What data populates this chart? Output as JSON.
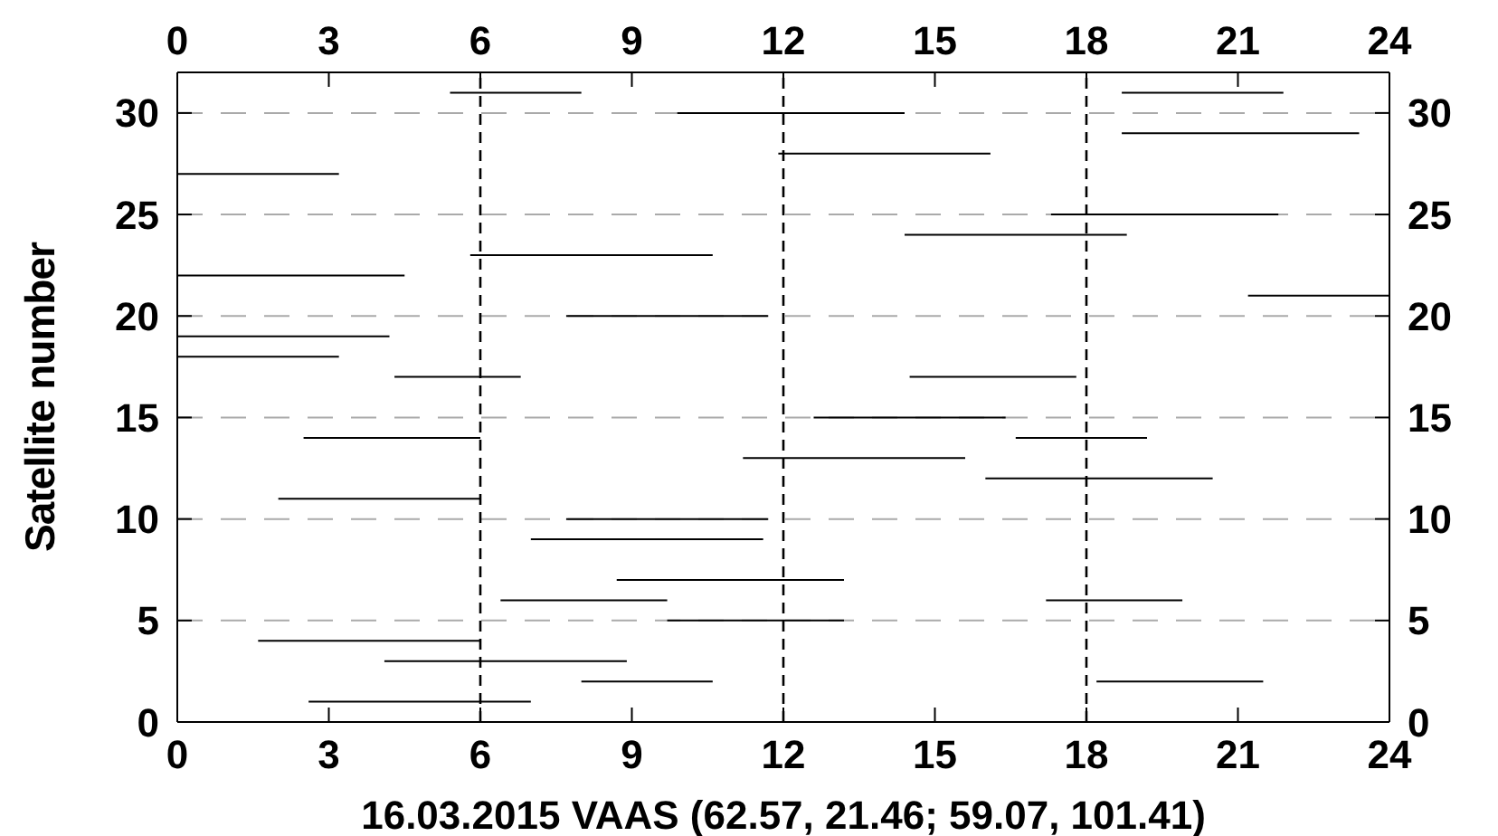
{
  "chart_data": {
    "type": "line",
    "xlabel": "16.03.2015 VAAS (62.57, 21.46; 59.07, 101.41)",
    "ylabel": "Satellite number",
    "xlim": [
      0,
      24
    ],
    "xticks": [
      0,
      3,
      6,
      9,
      12,
      15,
      18,
      21,
      24
    ],
    "x2lim": [
      0,
      24
    ],
    "x2ticks": [
      0,
      3,
      6,
      9,
      12,
      15,
      18,
      21,
      24
    ],
    "ylim": [
      0,
      32
    ],
    "yticks": [
      0,
      5,
      10,
      15,
      20,
      25,
      30
    ],
    "y2lim": [
      0,
      32
    ],
    "y2ticks": [
      0,
      5,
      10,
      15,
      20,
      25,
      30
    ],
    "grid": "y",
    "line_style": "solid",
    "ref_lines": [
      {
        "axis": "x",
        "value": 6,
        "color": "#000000",
        "line_style": "dashed"
      },
      {
        "axis": "x",
        "value": 12,
        "color": "#000000",
        "line_style": "dashed"
      },
      {
        "axis": "x",
        "value": 18,
        "color": "#000000",
        "line_style": "dashed"
      }
    ],
    "series": [
      {
        "color": "#000000",
        "x": [
          5.4,
          8.0
        ],
        "values": [
          31,
          31
        ]
      },
      {
        "color": "#000000",
        "x": [
          18.7,
          21.9
        ],
        "values": [
          31,
          31
        ]
      },
      {
        "color": "#000000",
        "x": [
          9.9,
          14.4
        ],
        "values": [
          30,
          30
        ]
      },
      {
        "color": "#000000",
        "x": [
          18.7,
          23.4
        ],
        "values": [
          29,
          29
        ]
      },
      {
        "color": "#000000",
        "x": [
          11.9,
          16.1
        ],
        "values": [
          28,
          28
        ]
      },
      {
        "color": "#000000",
        "x": [
          0,
          3.2
        ],
        "values": [
          27,
          27
        ]
      },
      {
        "color": "#000000",
        "x": [
          17.3,
          21.8
        ],
        "values": [
          25,
          25
        ]
      },
      {
        "color": "#000000",
        "x": [
          14.4,
          18.8
        ],
        "values": [
          24,
          24
        ]
      },
      {
        "color": "#000000",
        "x": [
          5.8,
          10.6
        ],
        "values": [
          23,
          23
        ]
      },
      {
        "color": "#000000",
        "x": [
          0,
          4.5
        ],
        "values": [
          22,
          22
        ]
      },
      {
        "color": "#000000",
        "x": [
          21.2,
          24
        ],
        "values": [
          21,
          21
        ]
      },
      {
        "color": "#000000",
        "x": [
          7.7,
          11.7
        ],
        "values": [
          20,
          20
        ]
      },
      {
        "color": "#000000",
        "x": [
          0,
          4.2
        ],
        "values": [
          19,
          19
        ]
      },
      {
        "color": "#000000",
        "x": [
          0,
          3.2
        ],
        "values": [
          18,
          18
        ]
      },
      {
        "color": "#000000",
        "x": [
          4.3,
          6.8
        ],
        "values": [
          17,
          17
        ]
      },
      {
        "color": "#000000",
        "x": [
          14.5,
          17.8
        ],
        "values": [
          17,
          17
        ]
      },
      {
        "color": "#000000",
        "x": [
          12.6,
          16.4
        ],
        "values": [
          15,
          15
        ]
      },
      {
        "color": "#000000",
        "x": [
          2.5,
          6.0
        ],
        "values": [
          14,
          14
        ]
      },
      {
        "color": "#000000",
        "x": [
          16.6,
          19.2
        ],
        "values": [
          14,
          14
        ]
      },
      {
        "color": "#000000",
        "x": [
          11.2,
          15.6
        ],
        "values": [
          13,
          13
        ]
      },
      {
        "color": "#000000",
        "x": [
          16.0,
          20.5
        ],
        "values": [
          12,
          12
        ]
      },
      {
        "color": "#000000",
        "x": [
          2.0,
          6.0
        ],
        "values": [
          11,
          11
        ]
      },
      {
        "color": "#000000",
        "x": [
          7.7,
          11.7
        ],
        "values": [
          10,
          10
        ]
      },
      {
        "color": "#000000",
        "x": [
          7.0,
          11.6
        ],
        "values": [
          9,
          9
        ]
      },
      {
        "color": "#000000",
        "x": [
          8.7,
          13.2
        ],
        "values": [
          7,
          7
        ]
      },
      {
        "color": "#000000",
        "x": [
          6.4,
          9.7
        ],
        "values": [
          6,
          6
        ]
      },
      {
        "color": "#000000",
        "x": [
          17.2,
          19.9
        ],
        "values": [
          6,
          6
        ]
      },
      {
        "color": "#000000",
        "x": [
          9.7,
          13.2
        ],
        "values": [
          5,
          5
        ]
      },
      {
        "color": "#000000",
        "x": [
          1.6,
          6.0
        ],
        "values": [
          4,
          4
        ]
      },
      {
        "color": "#000000",
        "x": [
          4.1,
          8.9
        ],
        "values": [
          3,
          3
        ]
      },
      {
        "color": "#000000",
        "x": [
          8.0,
          10.6
        ],
        "values": [
          2,
          2
        ]
      },
      {
        "color": "#000000",
        "x": [
          18.2,
          21.5
        ],
        "values": [
          2,
          2
        ]
      },
      {
        "color": "#000000",
        "x": [
          2.6,
          7.0
        ],
        "values": [
          1,
          1
        ]
      }
    ]
  }
}
